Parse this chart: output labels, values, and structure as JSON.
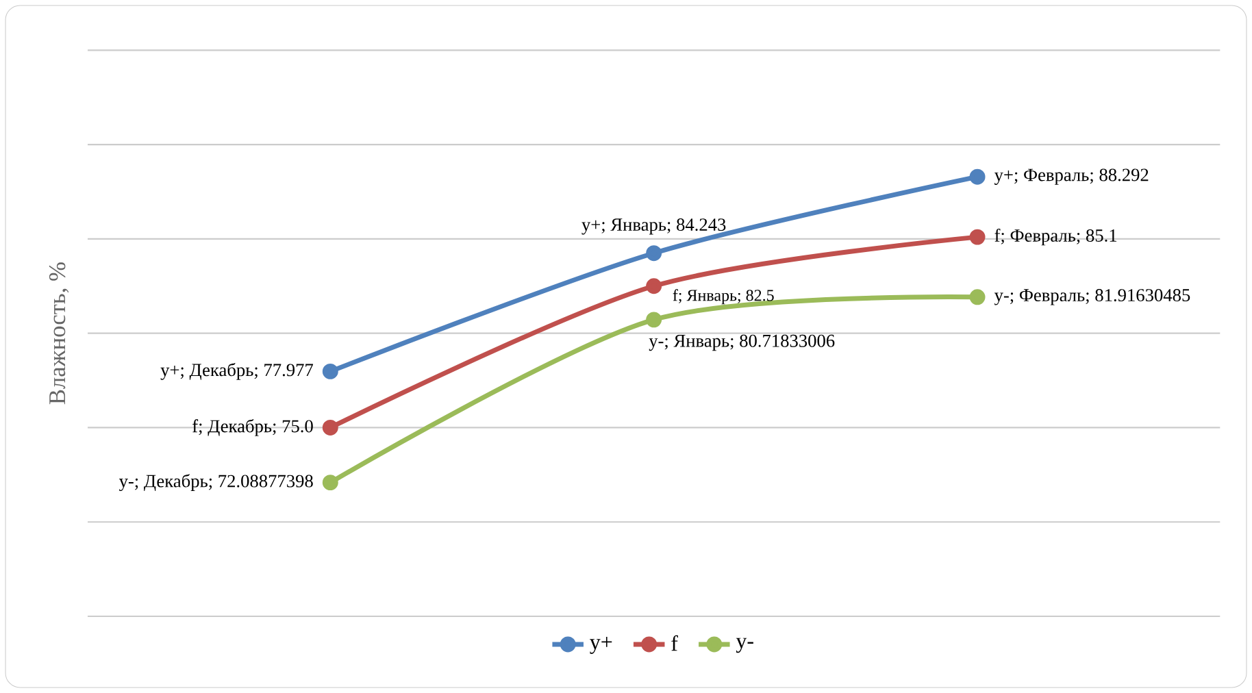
{
  "chart_data": {
    "type": "line",
    "ylabel": "Влажность, %",
    "categories": [
      null,
      null,
      null
    ],
    "series": [
      {
        "name": "y+",
        "color": "#4f81bd",
        "values": [
          77.977,
          84.243,
          88.292
        ],
        "value_labels": [
          "y+; Декабрь; 77.977",
          "y+; Январь; 84.243",
          "y+; Февраль; 88.292"
        ]
      },
      {
        "name": "f",
        "color": "#c0504d",
        "values": [
          75.0,
          82.5,
          85.1
        ],
        "value_labels": [
          "f; Декабрь; 75.0",
          "f; Январь; 82.5",
          "f; Февраль; 85.1"
        ]
      },
      {
        "name": "y-",
        "color": "#9bbb59",
        "values": [
          72.08877398,
          80.71833006,
          81.91630485
        ],
        "value_labels": [
          "y-; Декабрь; 72.08877398",
          "y-; Январь; 80.71833006",
          "y-; Февраль; 81.91630485"
        ]
      }
    ],
    "ylim": [
      65,
      95
    ],
    "yticks": [
      {
        "value": 65,
        "label": null
      },
      {
        "value": 70,
        "label": null
      },
      {
        "value": 75,
        "label": null
      },
      {
        "value": 80,
        "label": null
      },
      {
        "value": 85,
        "label": null
      },
      {
        "value": 90,
        "label": null
      },
      {
        "value": 95,
        "label": null
      }
    ],
    "grid": "y",
    "legend": "bottom",
    "marker": "circle",
    "line_style": "solid"
  }
}
